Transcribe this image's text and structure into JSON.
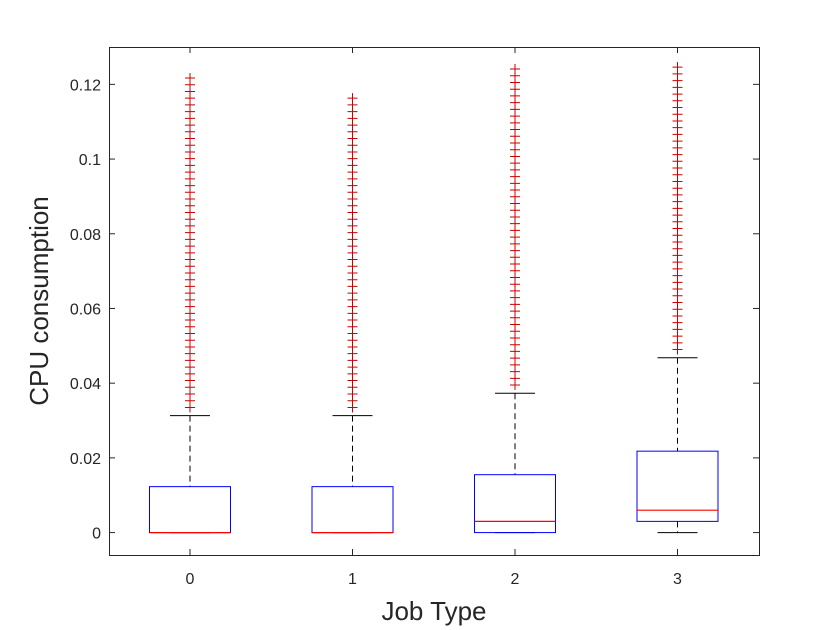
{
  "chart_data": {
    "type": "boxplot",
    "xlabel": "Job Type",
    "ylabel": "CPU consumption",
    "categories": [
      "0",
      "1",
      "2",
      "3"
    ],
    "ylim": [
      -0.006,
      0.13
    ],
    "yticks": [
      0,
      0.02,
      0.04,
      0.06,
      0.08,
      0.1,
      0.12
    ],
    "ytick_labels": [
      "0",
      "0.02",
      "0.04",
      "0.06",
      "0.08",
      "0.1",
      "0.12"
    ],
    "grid": false,
    "colors": {
      "box": "#0000ff",
      "median": "#ff0000",
      "whisker": "#000000",
      "outlier": "#cc0000",
      "axis": "#262626"
    },
    "boxes": [
      {
        "category": "0",
        "whisker_low": 0,
        "q1": 0,
        "median": 0,
        "q3": 0.0123,
        "whisker_high": 0.0313,
        "outlier_min": 0.0335,
        "outlier_max": 0.1225,
        "outlier_step": 0.0018
      },
      {
        "category": "1",
        "whisker_low": 0,
        "q1": 0,
        "median": 0,
        "q3": 0.0123,
        "whisker_high": 0.0313,
        "outlier_min": 0.0335,
        "outlier_max": 0.1165,
        "outlier_step": 0.0018
      },
      {
        "category": "2",
        "whisker_low": 0,
        "q1": 0,
        "median": 0.003,
        "q3": 0.0155,
        "whisker_high": 0.0373,
        "outlier_min": 0.0395,
        "outlier_max": 0.1255,
        "outlier_step": 0.0018
      },
      {
        "category": "3",
        "whisker_low": 0,
        "q1": 0.003,
        "median": 0.006,
        "q3": 0.0218,
        "whisker_high": 0.0468,
        "outlier_min": 0.049,
        "outlier_max": 0.1255,
        "outlier_step": 0.0018
      }
    ]
  }
}
